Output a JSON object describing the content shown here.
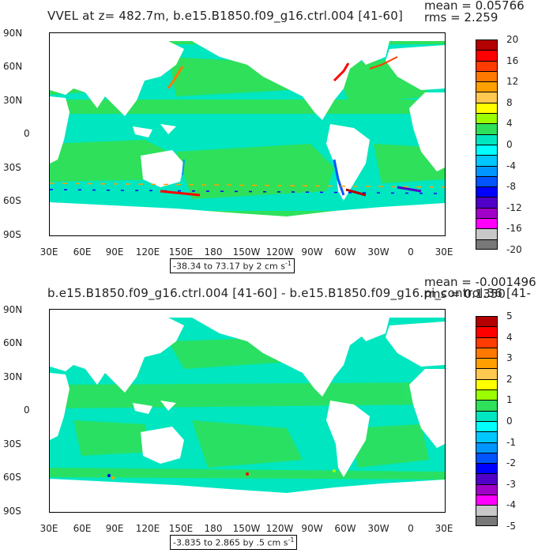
{
  "colors": {
    "land": "#ffffff",
    "ocean_main": "#00e6c0",
    "ocean_green": "#2ee05a",
    "frame": "#000000"
  },
  "top": {
    "title": "VVEL at z= 482.7m, b.e15.B1850.f09_g16.ctrl.004 [41-60]",
    "stats_mean": "mean = 0.05766",
    "stats_rms": "rms = 2.259",
    "range_label": "-38.34 to 73.17 by 2 cm s",
    "range_sup": "-1",
    "colorbar_labels": [
      "20",
      "16",
      "12",
      "8",
      "4",
      "0",
      "-4",
      "-8",
      "-12",
      "-16",
      "-20"
    ],
    "colorbar_colors": [
      "#b40000",
      "#ff0000",
      "#ff3c00",
      "#ff7800",
      "#ffa000",
      "#ffc850",
      "#ffff00",
      "#9bff00",
      "#2ee05a",
      "#00e6c0",
      "#00ffff",
      "#00c8ff",
      "#0096ff",
      "#0055ff",
      "#0000ff",
      "#5000c8",
      "#a000c8",
      "#ff00ff",
      "#c8c8c8",
      "#787878"
    ]
  },
  "bottom": {
    "title": "b.e15.B1850.f09_g16.ctrl.004 [41-60] - b.e15.B1850.f09_g16.pi_control.36 [41-",
    "stats_mean": "mean = -0.001496",
    "stats_rms": "rms = 0.1350",
    "range_label": "-3.835 to 2.865 by .5 cm s",
    "range_sup": "-1",
    "colorbar_labels": [
      "5",
      "4",
      "3",
      "2",
      "1",
      "0",
      "-1",
      "-2",
      "-3",
      "-4",
      "-5"
    ],
    "colorbar_colors": [
      "#b40000",
      "#ff0000",
      "#ff3c00",
      "#ff7800",
      "#ffa000",
      "#ffc850",
      "#ffff00",
      "#9bff00",
      "#2ee05a",
      "#00e6c0",
      "#00ffff",
      "#00c8ff",
      "#0096ff",
      "#0055ff",
      "#0000ff",
      "#5000c8",
      "#a000c8",
      "#ff00ff",
      "#c8c8c8",
      "#787878"
    ]
  },
  "axes": {
    "lat_labels": [
      "90N",
      "60N",
      "30N",
      "0",
      "30S",
      "60S",
      "90S"
    ],
    "lon_labels": [
      "30E",
      "60E",
      "90E",
      "120E",
      "150E",
      "180",
      "150W",
      "120W",
      "90W",
      "60W",
      "30W",
      "0",
      "30E"
    ]
  }
}
